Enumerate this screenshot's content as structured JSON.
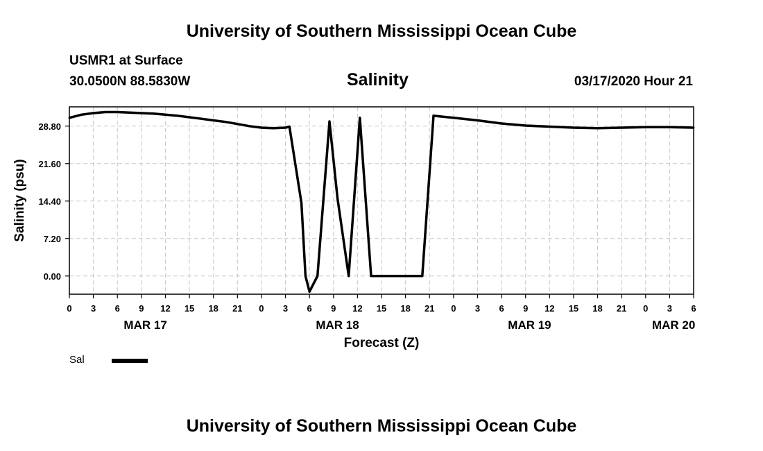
{
  "header": {
    "title": "University of Southern Mississippi Ocean Cube",
    "station": "USMR1 at Surface",
    "coordinates": "30.0500N 88.5830W",
    "datetime": "03/17/2020 Hour 21"
  },
  "footer": {
    "title": "University of Southern Mississippi Ocean Cube"
  },
  "chart_data": {
    "type": "line",
    "title": "Salinity",
    "xlabel": "Forecast (Z)",
    "ylabel": "Salinity (psu)",
    "xlim": [
      0,
      78
    ],
    "ylim": [
      -3.5,
      32.5
    ],
    "grid": true,
    "legend_position": "bottom-left",
    "yticks": [
      0.0,
      7.2,
      14.4,
      21.6,
      28.8
    ],
    "ytick_labels": [
      "0.00",
      "7.20",
      "14.40",
      "21.60",
      "28.80"
    ],
    "xticks": [
      0,
      3,
      6,
      9,
      12,
      15,
      18,
      21,
      24,
      27,
      30,
      33,
      36,
      39,
      42,
      45,
      48,
      51,
      54,
      57,
      60,
      63,
      66,
      69,
      72,
      75,
      78
    ],
    "xtick_labels": [
      "0",
      "3",
      "6",
      "9",
      "12",
      "15",
      "18",
      "21",
      "0",
      "3",
      "6",
      "9",
      "12",
      "15",
      "18",
      "21",
      "0",
      "3",
      "6",
      "9",
      "12",
      "15",
      "18",
      "21",
      "0",
      "3",
      "6"
    ],
    "date_labels": [
      {
        "x": 9.5,
        "label": "MAR 17"
      },
      {
        "x": 33.5,
        "label": "MAR 18"
      },
      {
        "x": 57.5,
        "label": "MAR 19"
      },
      {
        "x": 75.5,
        "label": "MAR 20"
      }
    ],
    "series": [
      {
        "name": "Sal",
        "x": [
          0,
          1.5,
          3,
          4.5,
          6,
          7.5,
          9,
          10.5,
          12,
          13.5,
          15,
          16.5,
          18,
          19.5,
          21,
          22.5,
          24,
          25.5,
          27,
          27.5,
          29,
          29.5,
          30,
          31,
          32.5,
          33.5,
          34.9,
          36.3,
          37.7,
          39.1,
          40.5,
          41.7,
          42.9,
          44.1,
          45.5,
          48,
          51,
          54,
          57,
          60,
          63,
          66,
          69,
          72,
          75,
          78
        ],
        "values": [
          30.4,
          31.0,
          31.3,
          31.5,
          31.5,
          31.4,
          31.3,
          31.2,
          31.0,
          30.8,
          30.5,
          30.2,
          29.9,
          29.6,
          29.2,
          28.8,
          28.5,
          28.4,
          28.5,
          28.7,
          14.0,
          0.0,
          -3.0,
          0.0,
          29.7,
          15.0,
          0.0,
          30.4,
          0.0,
          0.0,
          0.0,
          0.0,
          0.0,
          0.0,
          30.8,
          30.4,
          29.9,
          29.3,
          28.9,
          28.7,
          28.5,
          28.4,
          28.5,
          28.6,
          28.6,
          28.5
        ]
      }
    ]
  }
}
